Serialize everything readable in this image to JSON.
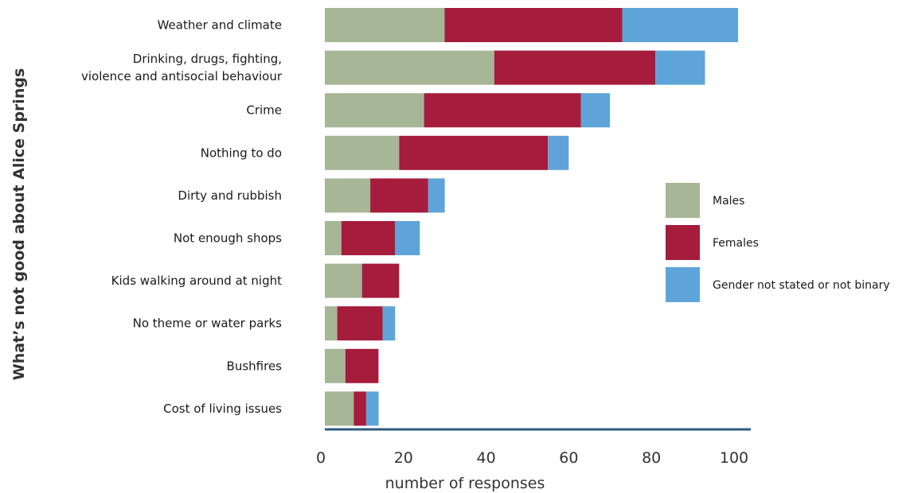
{
  "chart_data": {
    "type": "bar",
    "orientation": "horizontal",
    "stacked": true,
    "categories": [
      [
        "Weather and climate"
      ],
      [
        "Drinking, drugs, fighting,",
        "violence and antisocial behaviour"
      ],
      [
        "Crime"
      ],
      [
        "Nothing to do"
      ],
      [
        "Dirty and rubbish"
      ],
      [
        "Not enough shops"
      ],
      [
        "Kids walking around at night"
      ],
      [
        "No theme or water parks"
      ],
      [
        "Bushfires"
      ],
      [
        "Cost of living issues"
      ]
    ],
    "series": [
      {
        "name": "Males",
        "color": "#a7b696",
        "values": [
          29,
          41,
          24,
          18,
          11,
          4,
          9,
          3,
          5,
          7
        ]
      },
      {
        "name": "Females",
        "color": "#a51c3c",
        "values": [
          43,
          39,
          38,
          36,
          14,
          13,
          9,
          11,
          8,
          3
        ]
      },
      {
        "name": "Gender not stated or not binary",
        "color": "#5ea4d8",
        "values": [
          28,
          12,
          7,
          5,
          4,
          6,
          0,
          3,
          0,
          3
        ]
      }
    ],
    "xlabel": "number of responses",
    "ylabel": "What’s not good about Alice Springs",
    "xlim": [
      0,
      100
    ],
    "xticks": [
      "0",
      "20",
      "40",
      "60",
      "80",
      "100"
    ],
    "legend_position": "right",
    "grid": false,
    "axis_color": "#2e5b80"
  }
}
